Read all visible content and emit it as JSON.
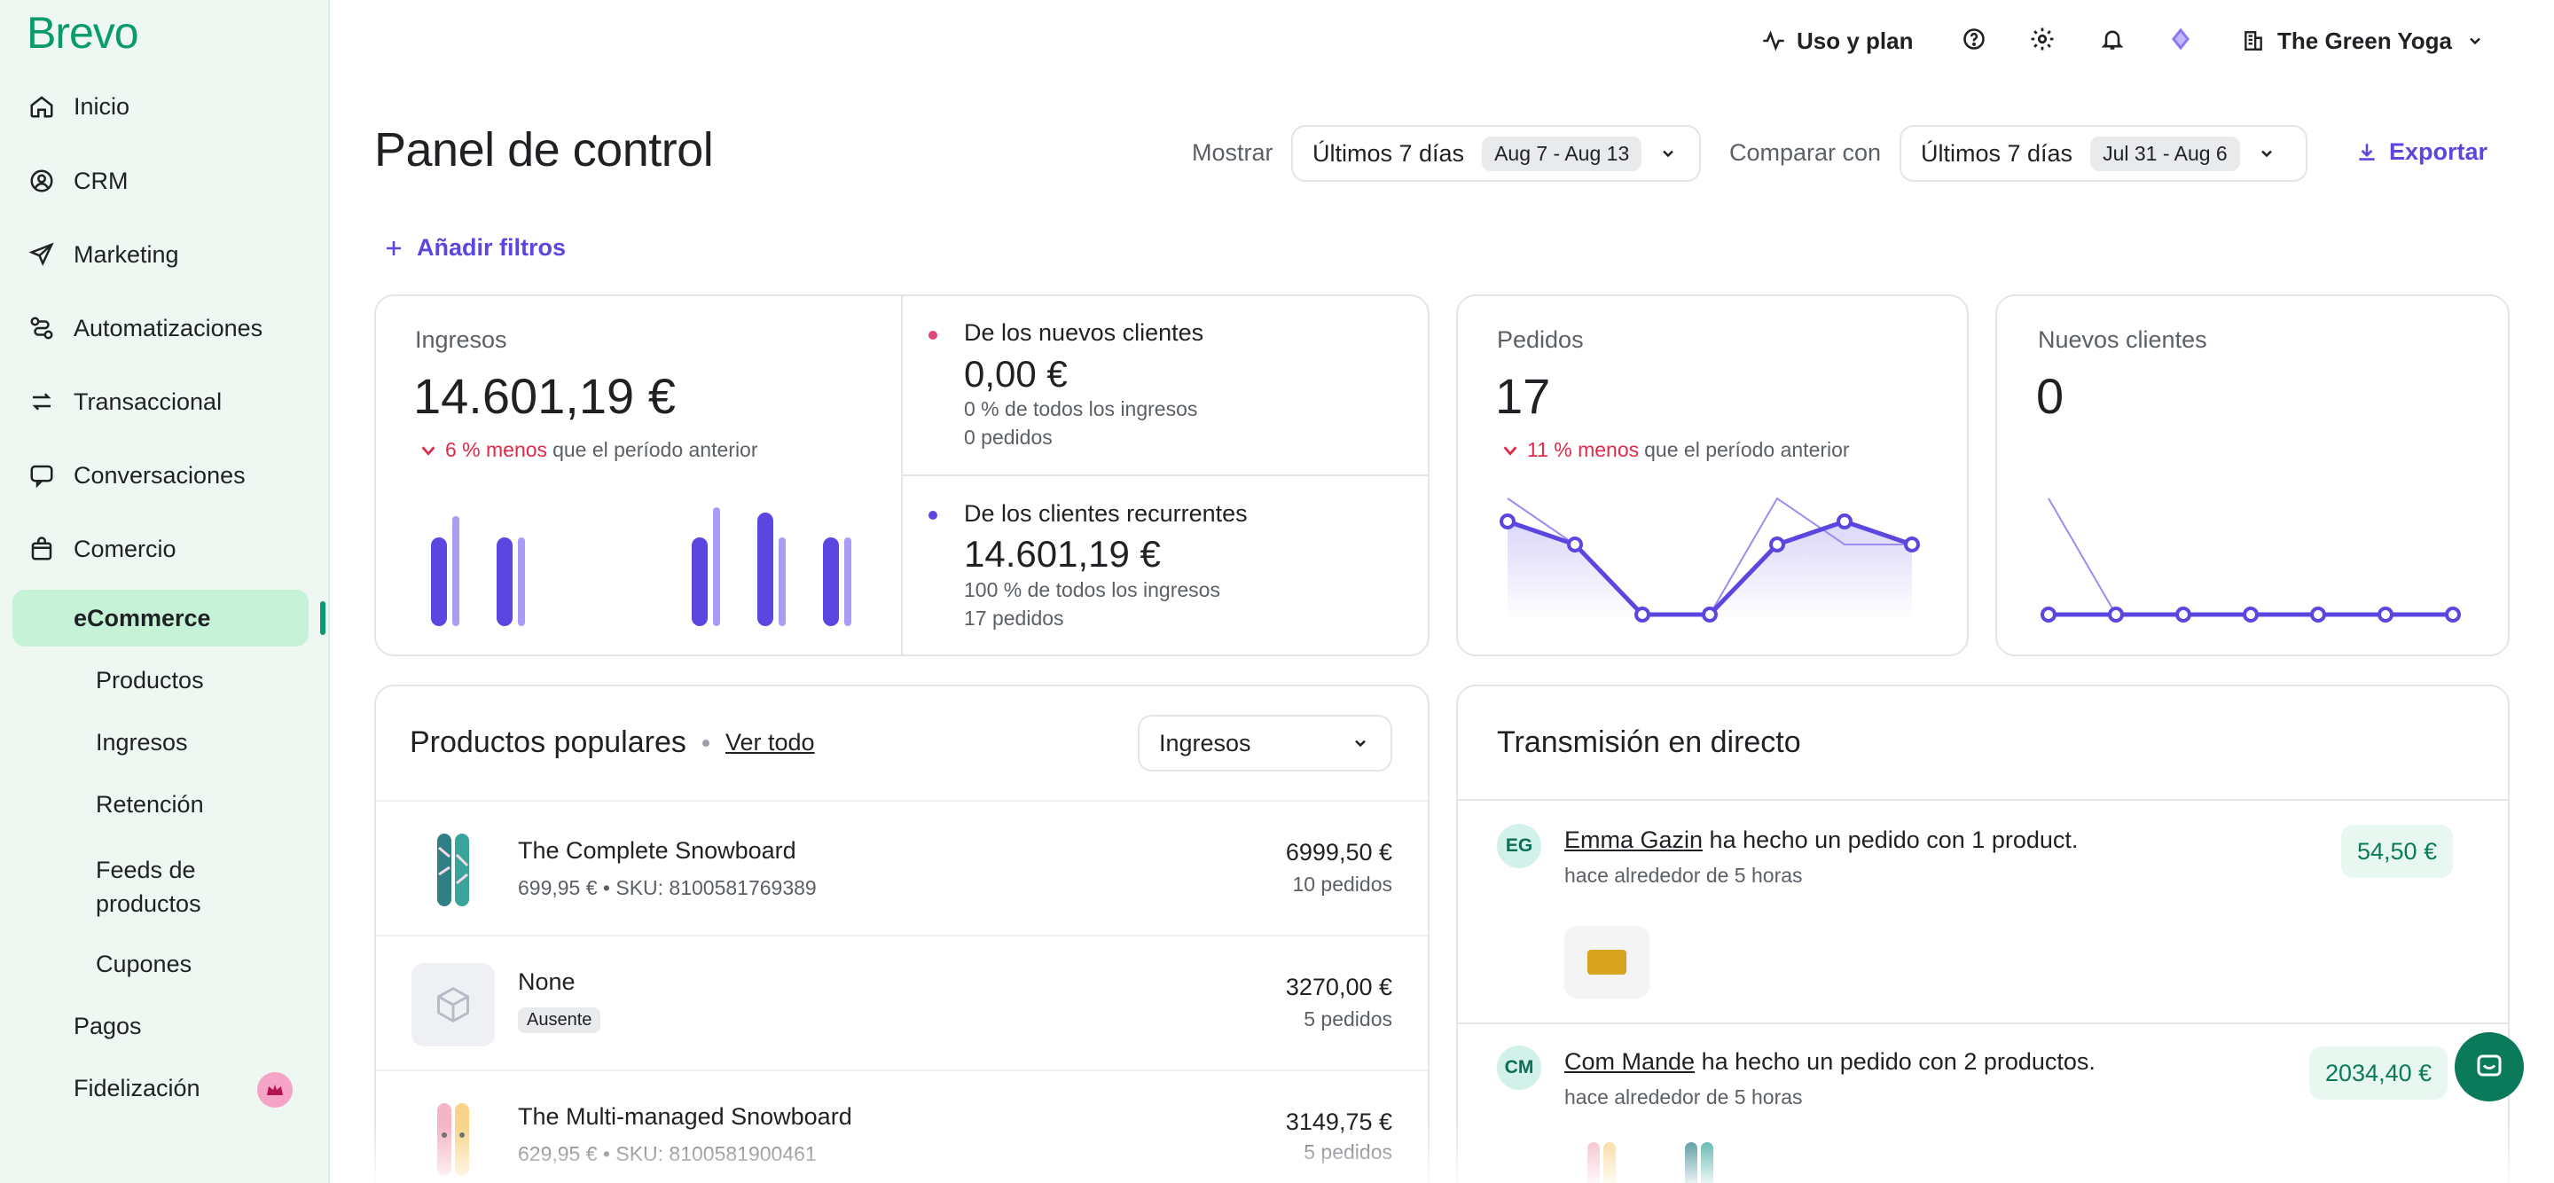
{
  "brand": {
    "logo": "Brevo",
    "accent": "#0b996e",
    "link_color": "#5b47e0"
  },
  "sidebar": {
    "items": [
      {
        "label": "Inicio",
        "icon": "home-icon"
      },
      {
        "label": "CRM",
        "icon": "contacts-icon"
      },
      {
        "label": "Marketing",
        "icon": "send-icon"
      },
      {
        "label": "Automatizaciones",
        "icon": "automation-icon"
      },
      {
        "label": "Transaccional",
        "icon": "transactional-icon"
      },
      {
        "label": "Conversaciones",
        "icon": "chat-icon"
      },
      {
        "label": "Comercio",
        "icon": "shopping-bag-icon"
      }
    ],
    "active": "eCommerce",
    "sub_items": [
      "Productos",
      "Ingresos",
      "Retención",
      "Feeds de productos",
      "Cupones"
    ],
    "tail_items": [
      "Pagos",
      "Fidelización"
    ]
  },
  "topbar": {
    "usage": "Uso y plan",
    "account": "The Green Yoga"
  },
  "header": {
    "title": "Panel de control",
    "show_label": "Mostrar",
    "period": "Últimos 7 días",
    "period_range": "Aug 7 - Aug 13",
    "compare_label": "Comparar con",
    "compare_period": "Últimos 7 días",
    "compare_range": "Jul 31 - Aug 6",
    "export": "Exportar",
    "add_filters": "Añadir filtros"
  },
  "revenue": {
    "label": "Ingresos",
    "value": "14.601,19 €",
    "trend_neg": "6 % menos",
    "trend_rest": "que el período anterior",
    "new_clients": {
      "title": "De los nuevos clientes",
      "value": "0,00 €",
      "share": "0 % de todos los ingresos",
      "orders": "0 pedidos",
      "color": "#e0457b"
    },
    "returning_clients": {
      "title": "De los clientes recurrentes",
      "value": "14.601,19 €",
      "share": "100 % de todos los ingresos",
      "orders": "17 pedidos",
      "color": "#5b47e0"
    }
  },
  "orders": {
    "label": "Pedidos",
    "value": "17",
    "trend_neg": "11 % menos",
    "trend_rest": "que el período anterior"
  },
  "new_customers": {
    "label": "Nuevos clientes",
    "value": "0"
  },
  "popular": {
    "title": "Productos populares",
    "see_all": "Ver todo",
    "sort": "Ingresos",
    "rows": [
      {
        "name": "The Complete Snowboard",
        "meta": "699,95 € • SKU: 8100581769389",
        "value": "6999,50 €",
        "orders": "10 pedidos"
      },
      {
        "name": "None",
        "badge": "Ausente",
        "value": "3270,00 €",
        "orders": "5 pedidos"
      },
      {
        "name": "The Multi-managed Snowboard",
        "meta": "629,95 € • SKU: 8100581900461",
        "value": "3149,75 €",
        "orders": "5 pedidos"
      }
    ]
  },
  "live": {
    "title": "Transmisión en directo",
    "items": [
      {
        "initials": "EG",
        "name": "Emma Gazin",
        "text": " ha hecho un pedido con 1 product.",
        "time": "hace alrededor de 5 horas",
        "amount": "54,50 €"
      },
      {
        "initials": "CM",
        "name": "Com Mande",
        "text": " ha hecho un pedido con 2 productos.",
        "time": "hace alrededor de 5 horas",
        "amount": "2034,40 €"
      }
    ]
  }
}
